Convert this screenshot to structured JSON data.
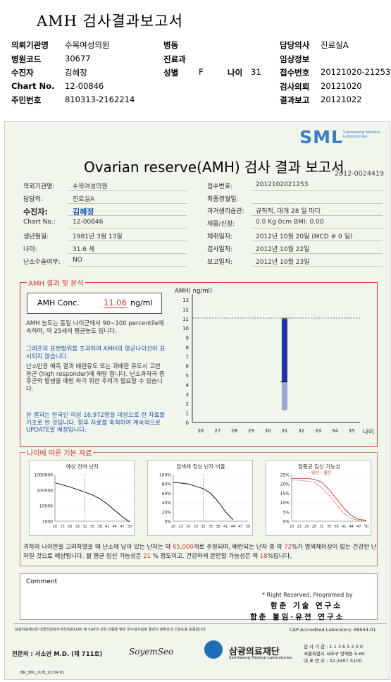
{
  "header": {
    "title": "AMH 검사결과보고서",
    "rows": [
      {
        "c1l": "의뢰기관명",
        "c1v": "수목여성의원",
        "c2l": "병동",
        "c2v": "",
        "c3l": "",
        "c3v": "",
        "c4l": "담당의사",
        "c4v": "진료실A"
      },
      {
        "c1l": "병원코드",
        "c1v": "30677",
        "c2l": "진료과",
        "c2v": "",
        "c3l": "",
        "c3v": "",
        "c4l": "임상정보",
        "c4v": ""
      },
      {
        "c1l": "수진자",
        "c1v": "김혜정",
        "c2l": "성별",
        "c2v": "F",
        "c3l": "나이",
        "c3v": "31",
        "c4l": "접수번호",
        "c4v": "20121020-21253"
      },
      {
        "c1l": "Chart No.",
        "c1v": "12-00846",
        "c2l": "",
        "c2v": "",
        "c3l": "",
        "c3v": "",
        "c4l": "검사의뢰",
        "c4v": "20121020"
      },
      {
        "c1l": "주민번호",
        "c1v": "810313-2162214",
        "c2l": "",
        "c2v": "",
        "c3l": "",
        "c3v": "",
        "c4l": "결과보고",
        "c4v": "20121022"
      }
    ]
  },
  "report": {
    "logo": "SML",
    "logo_sub": "Samkwang Medical Laboratories",
    "title": "Ovarian reserve(AMH) 검사 결과 보고서",
    "number": "2012-0024419",
    "left_fields": [
      {
        "label": "의뢰기관명:",
        "value": "수목여성의원"
      },
      {
        "label": "담당의:",
        "value": "진료실A"
      },
      {
        "label": "수진자:",
        "value": "김혜정"
      },
      {
        "label": "Chart No.:",
        "value": "12-00846"
      },
      {
        "label": "생년월일:",
        "value": "1981년 3월 13일"
      },
      {
        "label": "나이:",
        "value": "31.6 세"
      },
      {
        "label": "난소수술여부:",
        "value": "NO"
      }
    ],
    "right_fields": [
      {
        "label": "접수번호:",
        "value": "2012102021253"
      },
      {
        "label": "최종경월일:",
        "value": ""
      },
      {
        "label": "과거생리습관:",
        "value": "규칙적, 대개   28 일 마다"
      },
      {
        "label": "체중/신장:",
        "value": "0.0 Kg      0cm   BMI:   0.00"
      },
      {
        "label": "채취일자:",
        "value": "2012년 10월 20일 (MCD # 0 일)"
      },
      {
        "label": "검사일자:",
        "value": "2012년 10월 22일"
      },
      {
        "label": "보고일자:",
        "value": "2012년 10월 23일"
      }
    ],
    "section1": "AMH 결과 및 분석",
    "amh_label": "AMH Conc.",
    "amh_value": "11.06",
    "amh_unit": "ng/ml",
    "notes": [
      {
        "text": "AMH 농도는 동일 나이군에서  90~100 percentile에 속하며, 약  25세의 평균농도 입니다.",
        "blue": false
      },
      {
        "text": "그래프의 표현범위를 초과하여 AMH의 평균나이선이 표시되지 않습니다.",
        "blue": true
      },
      {
        "text": "난소반응 예측 결과 배란유도 또는 과배란 유도시 고반응군 (high responder)에 해당 합니다. 난소과자극 증후군의 발생을 예방 하기 위한 주의가 필요할 수 있습니다.",
        "blue": false
      },
      {
        "text": "본 결과는 한국인 여성 16,972명을 대상으로 한 자료를 기초로 한 것입니다. 향후 자료를 축적하여 계속적으로 UPDATE할 예정입니다.",
        "blue": true
      }
    ],
    "section2": "나이에 따른 기본 자료",
    "mini_titles": [
      "예상 잔여 난자",
      "염색체 정상 난자 비율",
      "월평균 임신 가능성"
    ],
    "mini_legend": "- 임신-- 출산",
    "summary_1": "귀하의 나이만을 고려하였을 때 난소에 남아 있는 난자는 약 ",
    "summary_v1": "65,000",
    "summary_2": "개로 추정되며, 배란되는 난자 중 약 ",
    "summary_v2": "72",
    "summary_3": "%가 염색체이상이 없는 건강한 난자일 것으로 예상됩니다. 월 평균 임신 가능성은 ",
    "summary_v3": "21",
    "summary_4": " % 정도이고, 건강하게 분만할 가능성은 약 ",
    "summary_v4": "18",
    "summary_5": "%입니다.",
    "comment_label": "Comment",
    "rights": "* Right Reserved. Programed by",
    "lab1": "함춘 기술 연구소",
    "lab2": "함춘 불임·유전 연구소",
    "disclaimer": "삼광의료재단은 대한진단검사의학회(KSLM) 및 CAP의 신임 인증을 받은 우수검사실로 결과의 정확성과 신빙도를 보증합니다.",
    "cap": "CAP Accredited  Laboratory,   69944-01",
    "signer": "전문의 : 서소연 M.D. (제 711호)",
    "signature": "SoyemSeo",
    "foundation": "삼광의료재단",
    "foundation_sub": "Samkwang Medical Laboratories",
    "contact": [
      "검 사 기 관 : 1 1 3 6 5 2 0 0",
      "서울특별시 서초구 양재동 9-60",
      "대 표 번 호 : 02-3497-5100"
    ],
    "form_no": "BR_SML_02B_10.04.01"
  },
  "chart_data": [
    {
      "type": "bar",
      "xlabel": "나이",
      "ylabel": "AMH( ng/ml)",
      "x": [
        26,
        27,
        28,
        29,
        30,
        31,
        32,
        33,
        34,
        35
      ],
      "ylim": [
        0,
        13
      ],
      "bar": {
        "x": 31,
        "top": 11,
        "dark_bottom": 4.3,
        "light_bottom": 1.3
      },
      "ref_line": 11.06,
      "colors": {
        "dark": "#2233aa",
        "light": "#9aa7cf"
      }
    },
    {
      "type": "line",
      "title": "예상 잔여 난자",
      "scale": "log",
      "yticks": [
        "1000000",
        "100000",
        "10000",
        "1000"
      ],
      "xticks": [
        "20",
        "23",
        "26",
        "29",
        "32",
        "35",
        "38",
        "41",
        "44",
        "47",
        "50"
      ],
      "x": [
        20,
        23,
        26,
        29,
        32,
        35,
        38,
        41,
        44,
        47,
        50
      ],
      "y": [
        300000,
        220000,
        160000,
        110000,
        75000,
        50000,
        28000,
        13000,
        5000,
        2000,
        900
      ]
    },
    {
      "type": "line",
      "title": "염색체 정상 난자 비율",
      "yticks": [
        "100%",
        "80%",
        "60%",
        "40%",
        "20%",
        "0%"
      ],
      "xticks": [
        "20",
        "23",
        "26",
        "29",
        "32",
        "35",
        "38",
        "41",
        "44",
        "47",
        "50"
      ],
      "x": [
        20,
        23,
        26,
        29,
        32,
        35,
        38,
        41,
        44
      ],
      "y": [
        83,
        82,
        80,
        75,
        70,
        60,
        42,
        20,
        3
      ]
    },
    {
      "type": "line",
      "title": "월평균 임신 가능성",
      "yticks": [
        "25%",
        "20%",
        "15%",
        "10%",
        "5%",
        "0%"
      ],
      "xticks": [
        "20",
        "23",
        "26",
        "29",
        "32",
        "35",
        "38",
        "41",
        "44",
        "47",
        "50"
      ],
      "series": [
        {
          "name": "임신",
          "x": [
            20,
            23,
            26,
            29,
            32,
            35,
            38,
            41,
            44,
            47,
            50
          ],
          "y": [
            23,
            23,
            23,
            22.5,
            21,
            17,
            12,
            7,
            3,
            1,
            0.5
          ]
        },
        {
          "name": "출산",
          "x": [
            20,
            23,
            26,
            29,
            32,
            35,
            38,
            41,
            44,
            47,
            50
          ],
          "y": [
            22,
            22,
            21.5,
            21,
            18,
            14,
            9,
            4,
            1.5,
            0.5,
            0.2
          ]
        }
      ]
    }
  ]
}
